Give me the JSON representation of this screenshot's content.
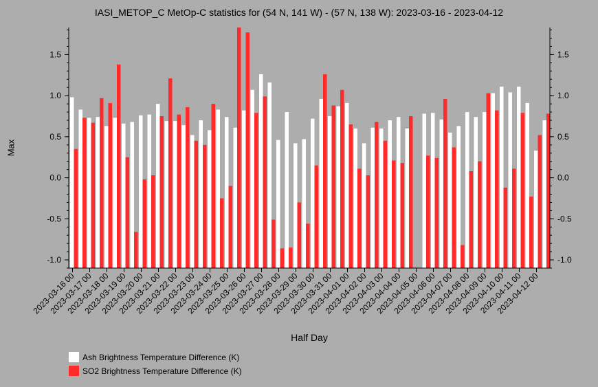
{
  "chart_data": {
    "type": "bar",
    "title": "IASI_METOP_C MetOp-C statistics for (54 N, 141 W) - (57 N, 138 W): 2023-03-16 - 2023-04-12",
    "xlabel": "Half Day",
    "ylabel": "Max",
    "ylim": [
      -1.1,
      1.83
    ],
    "yticks": [
      -1.0,
      -0.5,
      0.0,
      0.5,
      1.0,
      1.5
    ],
    "ytick_labels": [
      "-1.0",
      "-0.5",
      "0.0",
      "0.5",
      "1.0",
      "1.5"
    ],
    "xtick_labels": [
      "2023-03-16 00",
      "2023-03-17 00",
      "2023-03-18 00",
      "2023-03-19 00",
      "2023-03-20 00",
      "2023-03-21 00",
      "2023-03-22 00",
      "2023-03-23 00",
      "2023-03-24 00",
      "2023-03-25 00",
      "2023-03-26 00",
      "2023-03-27 00",
      "2023-03-28 00",
      "2023-03-29 00",
      "2023-03-30 00",
      "2023-03-31 00",
      "2023-04-01 00",
      "2023-04-02 00",
      "2023-04-03 00",
      "2023-04-04 00",
      "2023-04-05 00",
      "2023-04-06 00",
      "2023-04-07 00",
      "2023-04-08 00",
      "2023-04-09 00",
      "2023-04-10 00",
      "2023-04-11 00",
      "2023-04-12 00"
    ],
    "grid": false,
    "legend_position": "bottom-left",
    "series": [
      {
        "name": "Ash Brightness Temperature Difference (K)",
        "color": "#ffffff",
        "values": [
          0.98,
          0.83,
          0.73,
          0.74,
          0.63,
          0.73,
          0.66,
          0.68,
          0.76,
          0.77,
          0.9,
          0.69,
          0.69,
          0.64,
          0.52,
          0.7,
          0.58,
          0.83,
          0.74,
          0.61,
          0.82,
          1.07,
          1.26,
          1.16,
          0.46,
          0.8,
          0.42,
          0.47,
          0.72,
          0.96,
          0.75,
          0.87,
          0.91,
          0.6,
          0.42,
          0.61,
          0.6,
          0.7,
          0.74,
          0.6,
          null,
          0.78,
          0.79,
          0.71,
          0.55,
          0.63,
          0.8,
          0.74,
          0.8,
          1.03,
          1.11,
          1.04,
          1.11,
          0.91,
          0.33,
          0.7
        ]
      },
      {
        "name": "SO2 Brightness Temperature Difference (K)",
        "color": "#ff2a2a",
        "values": [
          0.35,
          0.73,
          0.67,
          0.97,
          0.91,
          1.38,
          0.25,
          -0.66,
          -0.02,
          0.03,
          0.75,
          1.21,
          0.77,
          0.86,
          0.45,
          0.4,
          0.9,
          -0.25,
          -0.1,
          1.83,
          1.77,
          0.79,
          0.99,
          -0.51,
          -0.86,
          -0.85,
          -0.3,
          -0.56,
          0.15,
          1.26,
          0.88,
          1.07,
          0.65,
          0.11,
          0.03,
          0.68,
          0.45,
          0.21,
          0.18,
          0.75,
          null,
          0.27,
          0.24,
          0.96,
          0.37,
          -0.82,
          0.08,
          0.2,
          1.03,
          0.82,
          -0.12,
          0.11,
          0.79,
          -0.23,
          0.52,
          0.78
        ]
      }
    ]
  }
}
